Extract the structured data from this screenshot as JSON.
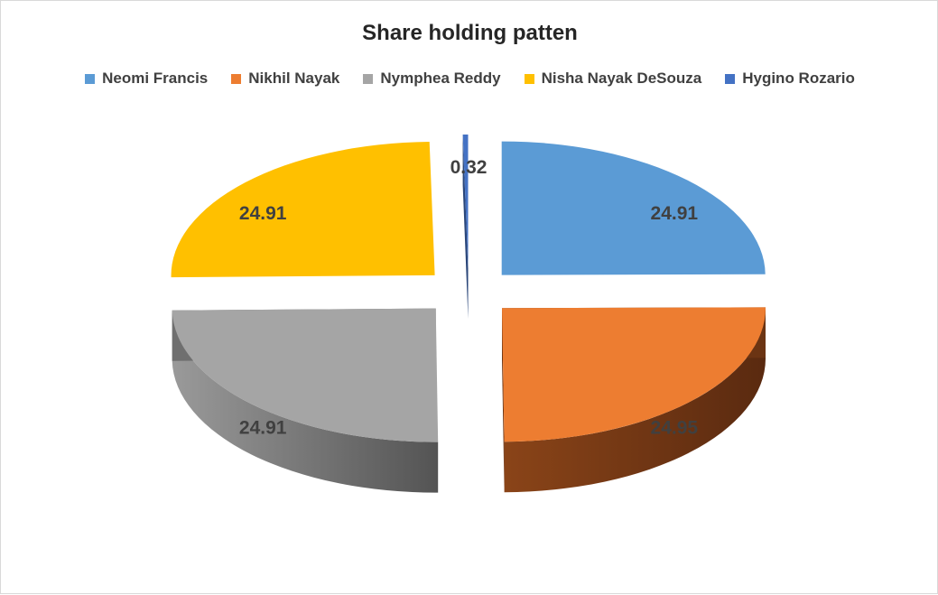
{
  "chart_data": {
    "type": "pie",
    "title": "Share holding patten",
    "legend_position": "top",
    "exploded": true,
    "three_d": true,
    "series": [
      {
        "slices": [
          {
            "label": "Neomi Francis",
            "value": 24.91,
            "color": "#5b9bd5",
            "side_color": "#223d57",
            "data_label": "24.91"
          },
          {
            "label": "Nikhil Nayak",
            "value": 24.95,
            "color": "#ed7d31",
            "side_color": "#6b3413",
            "data_label": "24.95"
          },
          {
            "label": "Nymphea Reddy",
            "value": 24.91,
            "color": "#a5a5a5",
            "side_color": "#6f6f6f",
            "data_label": "24.91"
          },
          {
            "label": "Nisha Nayak DeSouza",
            "value": 24.91,
            "color": "#ffc000",
            "side_color": "#674d00",
            "data_label": "24.91"
          },
          {
            "label": "Hygino Rozario",
            "value": 0.32,
            "color": "#4472c4",
            "side_color": "#2a4679",
            "data_label": "0.32"
          }
        ]
      }
    ]
  }
}
